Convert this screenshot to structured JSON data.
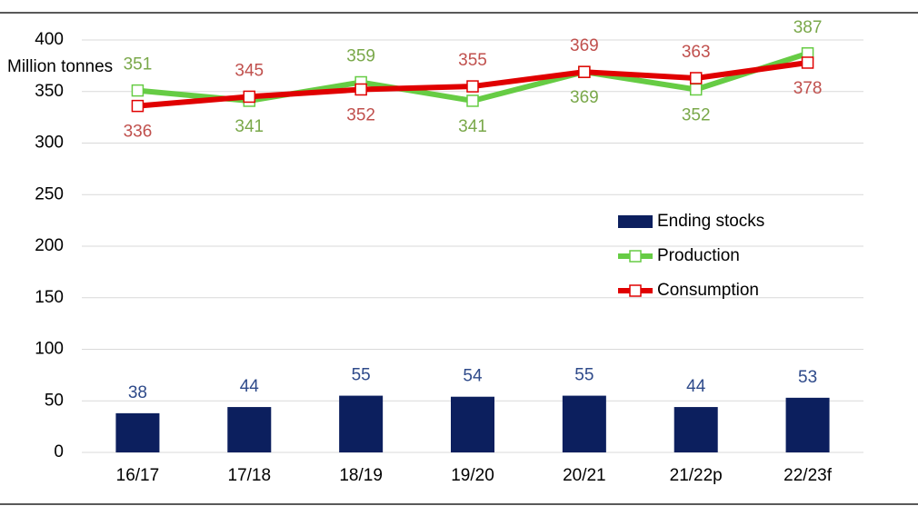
{
  "chart_data": {
    "type": "combo",
    "y_label": "Million tonnes",
    "categories": [
      "16/17",
      "17/18",
      "18/19",
      "19/20",
      "20/21",
      "21/22p",
      "22/23f"
    ],
    "series": [
      {
        "name": "Ending stocks",
        "type": "bar",
        "color": "#0c1f5e",
        "label_color": "#2e4a8a",
        "values": [
          38,
          44,
          55,
          54,
          55,
          44,
          53
        ]
      },
      {
        "name": "Production",
        "type": "line",
        "color": "#66cc44",
        "label_color": "#7aa84a",
        "values": [
          351,
          341,
          359,
          341,
          369,
          352,
          387
        ]
      },
      {
        "name": "Consumption",
        "type": "line",
        "color": "#e00000",
        "label_color": "#c0504d",
        "values": [
          336,
          345,
          352,
          355,
          369,
          363,
          378
        ]
      }
    ],
    "ylim": [
      0,
      400
    ],
    "yticks": [
      0,
      50,
      100,
      150,
      200,
      250,
      300,
      350,
      400
    ],
    "grid": true,
    "legend": "right"
  }
}
